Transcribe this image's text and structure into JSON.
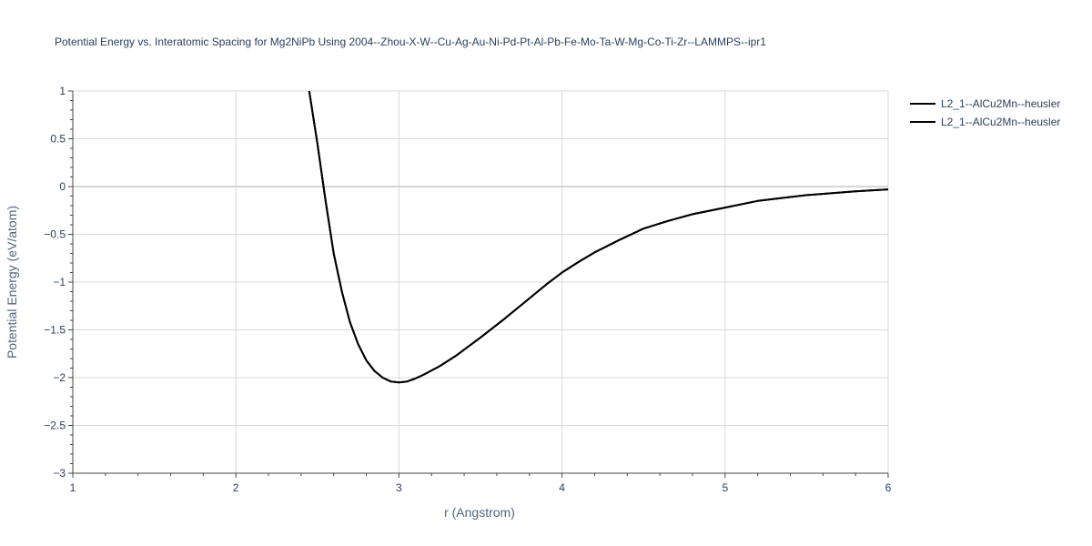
{
  "chart_data": {
    "type": "line",
    "title": "Potential Energy vs. Interatomic Spacing for Mg2NiPb Using 2004--Zhou-X-W--Cu-Ag-Au-Ni-Pd-Pt-Al-Pb-Fe-Mo-Ta-W-Mg-Co-Ti-Zr--LAMMPS--ipr1",
    "xlabel": "r (Angstrom)",
    "ylabel": "Potential Energy (eV/atom)",
    "xlim": [
      1,
      6
    ],
    "ylim": [
      -3,
      1
    ],
    "xticks": [
      1,
      2,
      3,
      4,
      5,
      6
    ],
    "xtick_labels": [
      "1",
      "2",
      "3",
      "4",
      "5",
      "6"
    ],
    "yticks": [
      1,
      0.5,
      0,
      -0.5,
      -1,
      -1.5,
      -2,
      -2.5,
      -3
    ],
    "ytick_labels": [
      "1",
      "0.5",
      "0",
      "−0.5",
      "−1",
      "−1.5",
      "−2",
      "−2.5",
      "−3"
    ],
    "grid": true,
    "legend_position": "top-right",
    "series": [
      {
        "name": "L2_1--AlCu2Mn--heusler",
        "color": "#000000",
        "x": [
          2.45,
          2.5,
          2.55,
          2.6,
          2.65,
          2.7,
          2.75,
          2.8,
          2.85,
          2.9,
          2.95,
          3.0,
          3.05,
          3.1,
          3.15,
          3.25,
          3.35,
          3.5,
          3.65,
          3.8,
          3.9,
          4.0,
          4.1,
          4.2,
          4.35,
          4.5,
          4.65,
          4.8,
          5.0,
          5.2,
          5.5,
          5.8,
          6.0
        ],
        "y": [
          1.0,
          0.45,
          -0.15,
          -0.7,
          -1.1,
          -1.42,
          -1.65,
          -1.82,
          -1.93,
          -2.0,
          -2.04,
          -2.05,
          -2.04,
          -2.01,
          -1.97,
          -1.88,
          -1.77,
          -1.58,
          -1.38,
          -1.17,
          -1.03,
          -0.9,
          -0.79,
          -0.69,
          -0.56,
          -0.44,
          -0.36,
          -0.29,
          -0.22,
          -0.15,
          -0.09,
          -0.05,
          -0.03
        ]
      },
      {
        "name": "L2_1--AlCu2Mn--heusler",
        "color": "#000000",
        "x": [
          2.45,
          2.5,
          2.55,
          2.6,
          2.65,
          2.7,
          2.75,
          2.8,
          2.85,
          2.9,
          2.95,
          3.0,
          3.05,
          3.1,
          3.15,
          3.25,
          3.35,
          3.5,
          3.65,
          3.8,
          3.9,
          4.0,
          4.1,
          4.2,
          4.35,
          4.5,
          4.65,
          4.8,
          5.0,
          5.2,
          5.5,
          5.8,
          6.0
        ],
        "y": [
          1.0,
          0.45,
          -0.15,
          -0.7,
          -1.1,
          -1.42,
          -1.65,
          -1.82,
          -1.93,
          -2.0,
          -2.04,
          -2.05,
          -2.04,
          -2.01,
          -1.97,
          -1.88,
          -1.77,
          -1.58,
          -1.38,
          -1.17,
          -1.03,
          -0.9,
          -0.79,
          -0.69,
          -0.56,
          -0.44,
          -0.36,
          -0.29,
          -0.22,
          -0.15,
          -0.09,
          -0.05,
          -0.03
        ]
      }
    ]
  }
}
